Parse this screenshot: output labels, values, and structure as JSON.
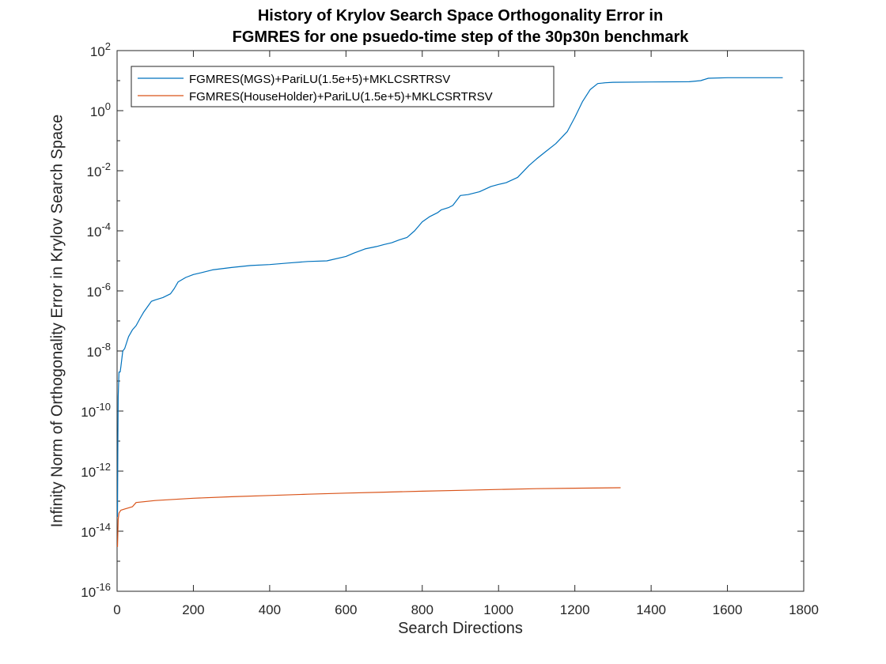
{
  "chart_data": {
    "type": "line",
    "title": [
      "History of Krylov Search Space Orthogonality Error in",
      "FGMRES for one psuedo-time step of the 30p30n benchmark"
    ],
    "xlabel": "Search Directions",
    "ylabel": "Infinity Norm of Orthogonality Error in Krylov Search Space",
    "xlim": [
      0,
      1800
    ],
    "ylim": [
      1e-16,
      100
    ],
    "yscale": "log",
    "xticks": [
      0,
      200,
      400,
      600,
      800,
      1000,
      1200,
      1400,
      1600,
      1800
    ],
    "xtick_labels": [
      "0",
      "200",
      "400",
      "600",
      "800",
      "1000",
      "1200",
      "1400",
      "1600",
      "1800"
    ],
    "ytick_exponents": [
      -16,
      -14,
      -12,
      -10,
      -8,
      -6,
      -4,
      -2,
      0,
      2
    ],
    "grid": false,
    "legend_position": "top-left",
    "series": [
      {
        "name": "FGMRES(MGS)+PariLU(1.5e+5)+MKLCSRTRSV",
        "color": "#0072BD",
        "x": [
          1,
          2,
          3,
          5,
          8,
          10,
          15,
          20,
          30,
          40,
          50,
          60,
          70,
          80,
          90,
          100,
          120,
          140,
          150,
          160,
          180,
          200,
          220,
          250,
          300,
          350,
          400,
          450,
          500,
          550,
          600,
          620,
          650,
          680,
          700,
          720,
          740,
          760,
          780,
          800,
          820,
          840,
          850,
          870,
          880,
          900,
          920,
          950,
          980,
          1000,
          1020,
          1050,
          1080,
          1100,
          1120,
          1150,
          1180,
          1200,
          1220,
          1240,
          1260,
          1280,
          1300,
          1400,
          1500,
          1530,
          1550,
          1600,
          1700,
          1745
        ],
        "y": [
          3e-14,
          1e-11,
          3e-10,
          2e-09,
          2e-09,
          3e-09,
          1e-08,
          1.2e-08,
          3e-08,
          5e-08,
          7e-08,
          1.2e-07,
          2e-07,
          3e-07,
          4.5e-07,
          5e-07,
          6e-07,
          8e-07,
          1.2e-06,
          2e-06,
          2.8e-06,
          3.5e-06,
          4e-06,
          5e-06,
          6e-06,
          7e-06,
          7.5e-06,
          8.5e-06,
          9.5e-06,
          1e-05,
          1.4e-05,
          1.8e-05,
          2.5e-05,
          3e-05,
          3.5e-05,
          4e-05,
          5e-05,
          6e-05,
          0.0001,
          0.0002,
          0.0003,
          0.0004,
          0.0005,
          0.0006,
          0.0007,
          0.0015,
          0.0016,
          0.002,
          0.003,
          0.0035,
          0.004,
          0.006,
          0.015,
          0.025,
          0.04,
          0.08,
          0.2,
          0.6,
          2,
          5,
          8,
          8.5,
          8.8,
          9,
          9.2,
          10,
          12,
          12.5,
          12.5,
          12.5
        ]
      },
      {
        "name": "FGMRES(HouseHolder)+PariLU(1.5e+5)+MKLCSRTRSV",
        "color": "#D95319",
        "x": [
          1,
          3,
          5,
          10,
          20,
          40,
          50,
          100,
          200,
          300,
          400,
          500,
          600,
          700,
          800,
          900,
          1000,
          1100,
          1200,
          1320
        ],
        "y": [
          3e-15,
          2.5e-14,
          4e-14,
          5e-14,
          5.5e-14,
          6.5e-14,
          9e-14,
          1.05e-13,
          1.25e-13,
          1.4e-13,
          1.55e-13,
          1.7e-13,
          1.85e-13,
          2e-13,
          2.15e-13,
          2.3e-13,
          2.45e-13,
          2.6e-13,
          2.7e-13,
          2.8e-13
        ]
      }
    ]
  }
}
